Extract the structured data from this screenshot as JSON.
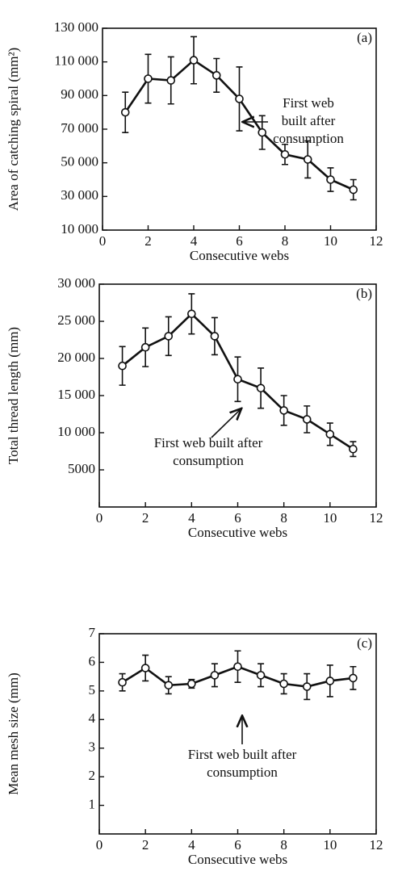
{
  "chart_data": [
    {
      "type": "line",
      "panel_label": "(a)",
      "xlabel": "Consecutive webs",
      "ylabel": "Area of catching spiral (mm²)",
      "x": [
        1,
        2,
        3,
        4,
        5,
        6,
        7,
        8,
        9,
        10,
        11
      ],
      "values": [
        80000,
        100000,
        99000,
        111000,
        102000,
        88000,
        68000,
        55000,
        52000,
        40000,
        34000
      ],
      "errors": [
        12000,
        14500,
        14000,
        14000,
        10000,
        19000,
        10000,
        6000,
        11000,
        7000,
        6000
      ],
      "xlim": [
        0,
        12
      ],
      "xticks": [
        0,
        2,
        4,
        6,
        8,
        10,
        12
      ],
      "ylim": [
        10000,
        130000
      ],
      "yticks": [
        {
          "value": 10000,
          "label": "10 000"
        },
        {
          "value": 30000,
          "label": "30 000"
        },
        {
          "value": 50000,
          "label": "50 000"
        },
        {
          "value": 70000,
          "label": "70 000"
        },
        {
          "value": 90000,
          "label": "90 000"
        },
        {
          "value": 110000,
          "label": "110 000"
        },
        {
          "value": 130000,
          "label": "130 000"
        }
      ],
      "annotation": [
        "First web",
        "built after",
        "consumption"
      ]
    },
    {
      "type": "line",
      "panel_label": "(b)",
      "xlabel": "Consecutive webs",
      "ylabel": "Total thread length (mm)",
      "x": [
        1,
        2,
        3,
        4,
        5,
        6,
        7,
        8,
        9,
        10,
        11
      ],
      "values": [
        19000,
        21500,
        23000,
        26000,
        23000,
        17200,
        16000,
        13000,
        11800,
        9800,
        7800
      ],
      "errors": [
        2600,
        2600,
        2600,
        2700,
        2500,
        3000,
        2700,
        2000,
        1800,
        1500,
        1000
      ],
      "xlim": [
        0,
        12
      ],
      "xticks": [
        0,
        2,
        4,
        6,
        8,
        10,
        12
      ],
      "ylim": [
        0,
        30000
      ],
      "yticks": [
        5000,
        {
          "value": 10000,
          "label": "10 000"
        },
        {
          "value": 15000,
          "label": "15 000"
        },
        {
          "value": 20000,
          "label": "20 000"
        },
        {
          "value": 25000,
          "label": "25 000"
        },
        {
          "value": 30000,
          "label": "30 000"
        }
      ],
      "annotation": [
        "First web built after",
        "consumption"
      ]
    },
    {
      "type": "line",
      "panel_label": "(c)",
      "xlabel": "Consecutive webs",
      "ylabel": "Mean mesh size (mm)",
      "x": [
        1,
        2,
        3,
        4,
        5,
        6,
        7,
        8,
        9,
        10,
        11
      ],
      "values": [
        5.3,
        5.8,
        5.2,
        5.25,
        5.55,
        5.85,
        5.55,
        5.25,
        5.15,
        5.35,
        5.45
      ],
      "errors": [
        0.3,
        0.45,
        0.3,
        0.15,
        0.4,
        0.55,
        0.4,
        0.35,
        0.45,
        0.55,
        0.4
      ],
      "xlim": [
        0,
        12
      ],
      "xticks": [
        0,
        2,
        4,
        6,
        8,
        10,
        12
      ],
      "ylim": [
        0,
        7
      ],
      "yticks": [
        1,
        2,
        3,
        4,
        5,
        6,
        7
      ],
      "annotation": [
        "First web built after",
        "consumption"
      ]
    }
  ]
}
